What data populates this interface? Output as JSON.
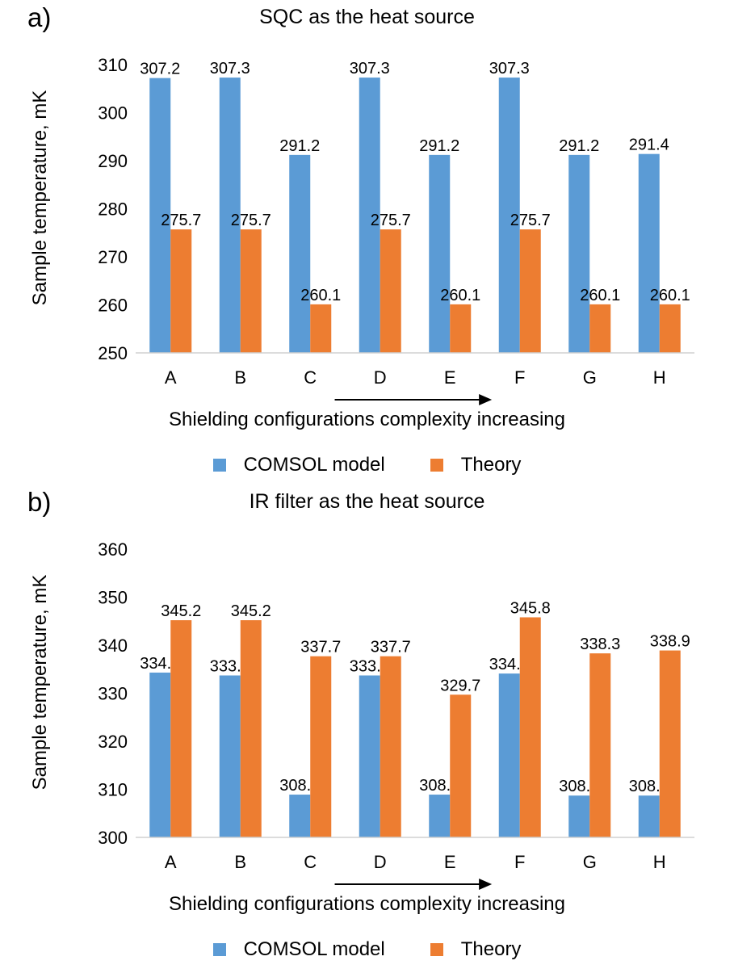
{
  "chart_data": [
    {
      "panel": "a)",
      "type": "bar",
      "title": "SQC as the heat source",
      "ylabel": "Sample temperature, mK",
      "xlabel": "Shielding configurations complexity increasing",
      "categories": [
        "A",
        "B",
        "C",
        "D",
        "E",
        "F",
        "G",
        "H"
      ],
      "ylim": [
        250,
        310
      ],
      "yticks": [
        250,
        260,
        270,
        280,
        290,
        300,
        310
      ],
      "series": [
        {
          "name": "COMSOL model",
          "color": "#5b9bd5",
          "values": [
            307.2,
            307.3,
            291.2,
            307.3,
            291.2,
            307.3,
            291.2,
            291.4
          ],
          "labels": [
            "307.2",
            "307.3",
            "291.2",
            "307.3",
            "291.2",
            "307.3",
            "291.2",
            "291.4"
          ]
        },
        {
          "name": "Theory",
          "color": "#ed7d31",
          "values": [
            275.7,
            275.7,
            260.1,
            275.7,
            260.1,
            275.7,
            260.1,
            260.1
          ],
          "labels": [
            "275.7",
            "275.7",
            "260.1",
            "275.7",
            "260.1",
            "275.7",
            "260.1",
            "260.1"
          ]
        }
      ],
      "legend": "bottom",
      "grid": false
    },
    {
      "panel": "b)",
      "type": "bar",
      "title": "IR filter as the heat source",
      "ylabel": "Sample temperature, mK",
      "xlabel": "Shielding configurations complexity increasing",
      "categories": [
        "A",
        "B",
        "C",
        "D",
        "E",
        "F",
        "G",
        "H"
      ],
      "ylim": [
        300,
        360
      ],
      "yticks": [
        300,
        310,
        320,
        330,
        340,
        350,
        360
      ],
      "series": [
        {
          "name": "COMSOL model",
          "color": "#5b9bd5",
          "values": [
            334.3,
            333.7,
            308.9,
            333.7,
            308.9,
            334.1,
            308.7,
            308.7
          ],
          "labels": [
            "334.3",
            "333.7",
            "308.9",
            "333.7",
            "308.9",
            "334.1",
            "308.7",
            "308.7"
          ]
        },
        {
          "name": "Theory",
          "color": "#ed7d31",
          "values": [
            345.2,
            345.2,
            337.7,
            337.7,
            329.7,
            345.8,
            338.3,
            338.9
          ],
          "labels": [
            "345.2",
            "345.2",
            "337.7",
            "337.7",
            "329.7",
            "345.8",
            "338.3",
            "338.9"
          ]
        }
      ],
      "legend": "bottom",
      "grid": false
    }
  ]
}
